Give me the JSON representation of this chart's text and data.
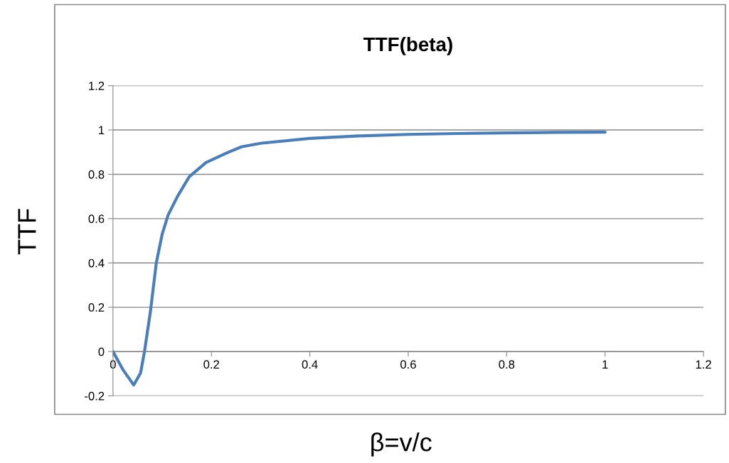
{
  "chart_data": {
    "type": "line",
    "title": "TTF(beta)",
    "xlabel": "β=v/c",
    "ylabel": "TTF",
    "xlim": [
      0,
      1.2
    ],
    "xticks": [
      0,
      0.2,
      0.4,
      0.6,
      0.8,
      1,
      1.2
    ],
    "ylim": [
      -0.2,
      1.2
    ],
    "yticks": [
      -0.2,
      0,
      0.2,
      0.4,
      0.6,
      0.8,
      1,
      1.2
    ],
    "grid": "y",
    "marker": "none",
    "line_style": "solid",
    "series": [
      {
        "color": "#4a7ebb",
        "x": [
          0,
          0.02,
          0.042,
          0.056,
          0.064,
          0.076,
          0.088,
          0.1,
          0.112,
          0.131,
          0.155,
          0.189,
          0.232,
          0.261,
          0.3,
          0.4,
          0.5,
          0.6,
          0.7,
          0.8,
          0.9,
          1
        ],
        "values": [
          0,
          -0.081,
          -0.151,
          -0.097,
          0,
          0.18,
          0.4,
          0.53,
          0.616,
          0.7,
          0.789,
          0.853,
          0.897,
          0.924,
          0.94,
          0.962,
          0.973,
          0.98,
          0.984,
          0.987,
          0.989,
          0.99
        ]
      }
    ]
  }
}
